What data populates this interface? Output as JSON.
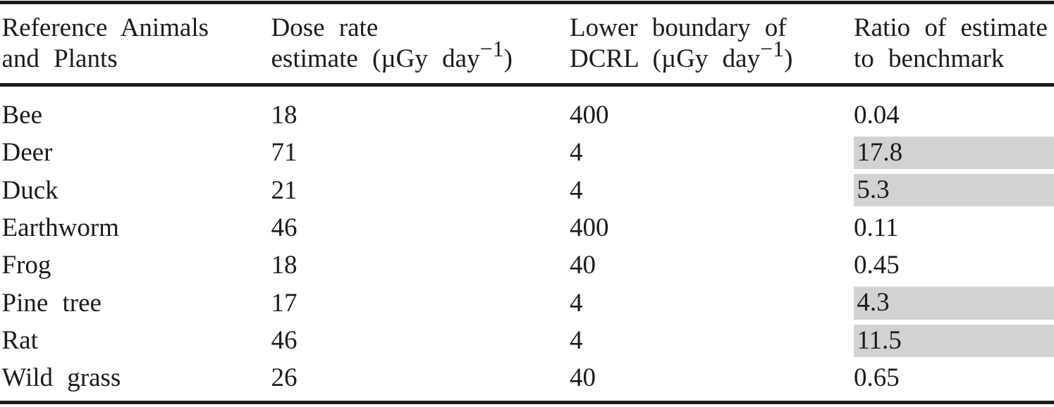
{
  "table": {
    "columns": [
      {
        "id": "animal",
        "line1": "Reference Animals",
        "line2_pre": "and Plants",
        "sup": "",
        "line2_post": ""
      },
      {
        "id": "dose",
        "line1": "Dose rate",
        "line2_pre": "estimate (µGy day",
        "sup": "−1",
        "line2_post": ")"
      },
      {
        "id": "dcrl",
        "line1": "Lower boundary of",
        "line2_pre": "DCRL (µGy day",
        "sup": "−1",
        "line2_post": ")"
      },
      {
        "id": "ratio",
        "line1": "Ratio of estimate",
        "line2_pre": "to benchmark",
        "sup": "",
        "line2_post": ""
      }
    ],
    "rows": [
      {
        "name": "Bee",
        "dose": "18",
        "dcrl": "400",
        "ratio": "0.04",
        "highlight": false
      },
      {
        "name": "Deer",
        "dose": "71",
        "dcrl": "4",
        "ratio": "17.8",
        "highlight": true
      },
      {
        "name": "Duck",
        "dose": "21",
        "dcrl": "4",
        "ratio": "5.3",
        "highlight": true
      },
      {
        "name": "Earthworm",
        "dose": "46",
        "dcrl": "400",
        "ratio": "0.11",
        "highlight": false
      },
      {
        "name": "Frog",
        "dose": "18",
        "dcrl": "40",
        "ratio": "0.45",
        "highlight": false
      },
      {
        "name": "Pine tree",
        "dose": "17",
        "dcrl": "4",
        "ratio": "4.3",
        "highlight": true
      },
      {
        "name": "Rat",
        "dose": "46",
        "dcrl": "4",
        "ratio": "11.5",
        "highlight": true
      },
      {
        "name": "Wild grass",
        "dose": "26",
        "dcrl": "40",
        "ratio": "0.65",
        "highlight": false
      }
    ],
    "colors": {
      "highlight": "#d2d2d2",
      "rule": "#1a1a1a",
      "text": "#1b1b1b"
    }
  }
}
